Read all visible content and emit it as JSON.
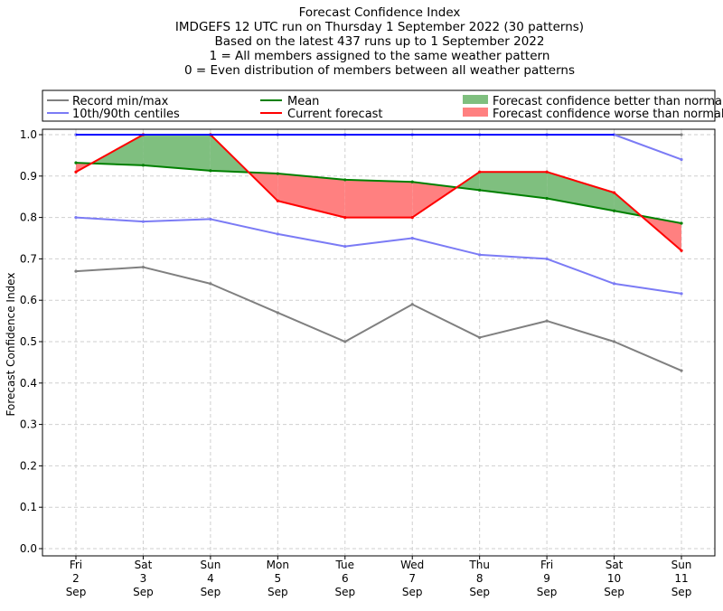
{
  "chart_data": {
    "type": "line",
    "title_lines": [
      "Forecast Confidence Index",
      "IMDGEFS 12 UTC run on Thursday 1 September 2022 (30 patterns)",
      "Based on the latest 437 runs up to 1 September 2022",
      "1 = All members assigned to the same weather pattern",
      "0 = Even distribution of members between all weather patterns"
    ],
    "ylabel": "Forecast Confidence Index",
    "xlabel": "",
    "ylim": [
      0,
      1.0
    ],
    "yticks": [
      "0.0",
      "0.1",
      "0.2",
      "0.3",
      "0.4",
      "0.5",
      "0.6",
      "0.7",
      "0.8",
      "0.9",
      "1.0"
    ],
    "grid": true,
    "categories": [
      [
        "Fri",
        "2",
        "Sep"
      ],
      [
        "Sat",
        "3",
        "Sep"
      ],
      [
        "Sun",
        "4",
        "Sep"
      ],
      [
        "Mon",
        "5",
        "Sep"
      ],
      [
        "Tue",
        "6",
        "Sep"
      ],
      [
        "Wed",
        "7",
        "Sep"
      ],
      [
        "Thu",
        "8",
        "Sep"
      ],
      [
        "Fri",
        "9",
        "Sep"
      ],
      [
        "Sat",
        "10",
        "Sep"
      ],
      [
        "Sun",
        "11",
        "Sep"
      ]
    ],
    "series": [
      {
        "name": "record_max",
        "values": [
          1.0,
          1.0,
          1.0,
          1.0,
          1.0,
          1.0,
          1.0,
          1.0,
          1.0,
          1.0
        ]
      },
      {
        "name": "record_min",
        "values": [
          0.67,
          0.68,
          0.64,
          0.57,
          0.5,
          0.59,
          0.51,
          0.55,
          0.5,
          0.43
        ]
      },
      {
        "name": "centile_90",
        "values": [
          1.0,
          1.0,
          1.0,
          1.0,
          1.0,
          1.0,
          1.0,
          1.0,
          1.0,
          0.94
        ]
      },
      {
        "name": "centile_10",
        "values": [
          0.8,
          0.79,
          0.796,
          0.76,
          0.73,
          0.75,
          0.71,
          0.7,
          0.64,
          0.616
        ]
      },
      {
        "name": "mean",
        "values": [
          0.932,
          0.926,
          0.913,
          0.906,
          0.891,
          0.886,
          0.866,
          0.846,
          0.816,
          0.786
        ]
      },
      {
        "name": "current_forecast",
        "values": [
          0.91,
          1.0,
          1.0,
          0.84,
          0.8,
          0.8,
          0.91,
          0.91,
          0.86,
          0.72
        ]
      }
    ],
    "legend": {
      "placement": "top",
      "entries": [
        {
          "label": "Record min/max",
          "kind": "line",
          "color": "#808080"
        },
        {
          "label": "10th/90th centiles",
          "kind": "line",
          "color": "#7b7bf5"
        },
        {
          "label": "Mean",
          "kind": "line",
          "color": "#008000"
        },
        {
          "label": "Current forecast",
          "kind": "line",
          "color": "#ff0000"
        },
        {
          "label": "Forecast confidence better than normal",
          "kind": "patch",
          "color": "#7fbf7f"
        },
        {
          "label": "Forecast confidence worse than normal",
          "kind": "patch",
          "color": "#ff8080"
        }
      ]
    },
    "colors": {
      "record": "#808080",
      "centile_low": "#7b7bf5",
      "centile_high": "#0000ff",
      "mean": "#008000",
      "current": "#ff0000",
      "better_fill": "#7fbf7f",
      "worse_fill": "#ff8080"
    }
  }
}
